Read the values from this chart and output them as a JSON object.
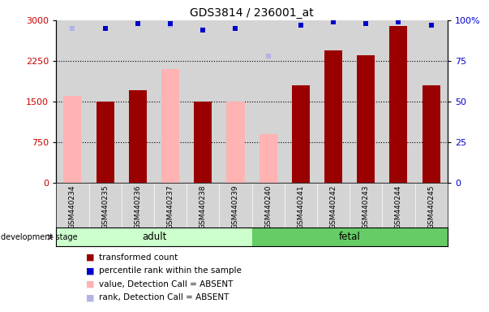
{
  "title": "GDS3814 / 236001_at",
  "samples": [
    "GSM440234",
    "GSM440235",
    "GSM440236",
    "GSM440237",
    "GSM440238",
    "GSM440239",
    "GSM440240",
    "GSM440241",
    "GSM440242",
    "GSM440243",
    "GSM440244",
    "GSM440245"
  ],
  "bar_values": [
    null,
    1500,
    1700,
    null,
    1500,
    null,
    null,
    1800,
    2450,
    2350,
    2900,
    1800
  ],
  "bar_absent_values": [
    1600,
    null,
    null,
    2100,
    null,
    1500,
    900,
    null,
    null,
    null,
    null,
    null
  ],
  "rank_values": [
    null,
    95,
    98,
    98,
    94,
    95,
    null,
    97,
    99,
    98,
    99,
    97
  ],
  "rank_absent_values": [
    95,
    95,
    null,
    97,
    null,
    null,
    78,
    null,
    null,
    null,
    null,
    null
  ],
  "groups": {
    "adult": [
      0,
      1,
      2,
      3,
      4,
      5
    ],
    "fetal": [
      6,
      7,
      8,
      9,
      10,
      11
    ]
  },
  "ylim_left": [
    0,
    3000
  ],
  "ylim_right": [
    0,
    100
  ],
  "yticks_left": [
    0,
    750,
    1500,
    2250,
    3000
  ],
  "yticks_right": [
    0,
    25,
    50,
    75,
    100
  ],
  "bar_color": "#9b0000",
  "bar_absent_color": "#ffb3b3",
  "rank_color": "#0000cc",
  "rank_absent_color": "#b3b3e6",
  "adult_color": "#ccffcc",
  "fetal_color": "#66cc66",
  "bg_color": "#d4d4d4",
  "grid_color": "#000000",
  "bar_width": 0.55
}
